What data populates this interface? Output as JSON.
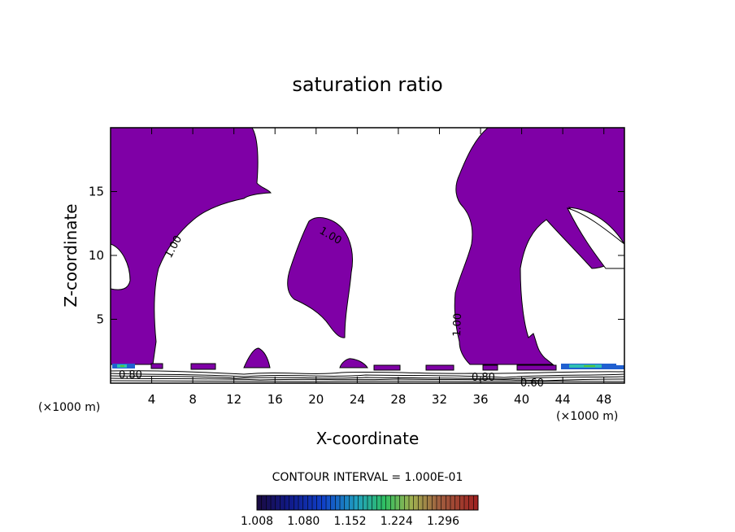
{
  "chart_data": {
    "type": "contour",
    "title": "saturation ratio",
    "xlabel": "X-coordinate",
    "ylabel": "Z-coordinate",
    "x_unit_left": "(×1000 m)",
    "x_unit_right": "(×1000 m)",
    "xlim": [
      0,
      50
    ],
    "ylim": [
      0,
      20
    ],
    "x_ticks": [
      4,
      8,
      12,
      16,
      20,
      24,
      28,
      32,
      36,
      40,
      44,
      48
    ],
    "y_ticks": [
      5,
      10,
      15
    ],
    "contour_interval_text": "CONTOUR INTERVAL = 1.000E-01",
    "contour_labels": [
      "1.00",
      "1.00",
      "1.00",
      "0.80",
      "0.80",
      "0.60"
    ],
    "colorbar_labels": [
      "1.008",
      "1.080",
      "1.152",
      "1.224",
      "1.296"
    ],
    "colorbar_range": [
      1.008,
      1.35
    ],
    "fill_color": "#7f00a6",
    "saturation_fill_threshold": 1.0
  }
}
